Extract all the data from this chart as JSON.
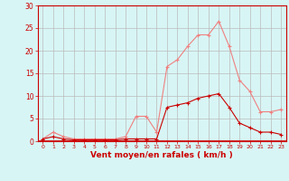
{
  "x": [
    0,
    1,
    2,
    3,
    4,
    5,
    6,
    7,
    8,
    9,
    10,
    11,
    12,
    13,
    14,
    15,
    16,
    17,
    18,
    19,
    20,
    21,
    22,
    23
  ],
  "rafales": [
    0.5,
    2,
    1,
    0.5,
    0.5,
    0.5,
    0.5,
    0.5,
    1,
    5.5,
    5.5,
    2,
    16.5,
    18,
    21,
    23.5,
    23.5,
    26.5,
    21,
    13.5,
    11,
    6.5,
    6.5,
    7
  ],
  "moyen": [
    0.5,
    1,
    0.5,
    0.3,
    0.3,
    0.3,
    0.3,
    0.3,
    0.5,
    0.5,
    0.5,
    0.5,
    7.5,
    8,
    8.5,
    9.5,
    10,
    10.5,
    7.5,
    4,
    3,
    2,
    2,
    1.5
  ],
  "bg_color": "#d8f5f5",
  "grid_color": "#bbbbbb",
  "rafales_color": "#f08080",
  "moyen_color": "#cc0000",
  "axis_color": "#cc0000",
  "xlabel": "Vent moyen/en rafales ( km/h )",
  "ylim": [
    0,
    30
  ],
  "xlim_min": -0.5,
  "xlim_max": 23.5,
  "yticks": [
    0,
    5,
    10,
    15,
    20,
    25,
    30
  ],
  "xticks": [
    0,
    1,
    2,
    3,
    4,
    5,
    6,
    7,
    8,
    9,
    10,
    11,
    12,
    13,
    14,
    15,
    16,
    17,
    18,
    19,
    20,
    21,
    22,
    23
  ]
}
